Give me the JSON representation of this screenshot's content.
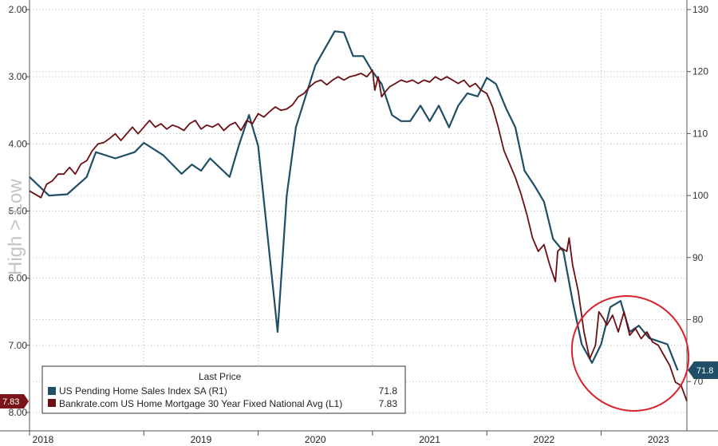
{
  "colors": {
    "pending": "#1f4e66",
    "mortgage": "#6b0f14",
    "highlight": "#d9222c",
    "grid": "#b8b8b8",
    "right_badge": "#1f4e66",
    "left_badge": "#7a141a"
  },
  "side_label": "High > Low",
  "legend": {
    "title": "Last Price",
    "items": [
      {
        "name": "US Pending Home Sales Index SA  (R1)",
        "value": "71.8",
        "color": "#1f4e66"
      },
      {
        "name": "Bankrate.com US Home Mortgage 30 Year Fixed National Avg  (L1)",
        "value": "7.83",
        "color": "#6b0f14"
      }
    ]
  },
  "chart_data": {
    "type": "line",
    "x_axis": {
      "range": [
        2018.0,
        2023.75
      ],
      "ticks": [
        {
          "value": 2018.0,
          "label": "2018"
        },
        {
          "value": 2019.0,
          "label": "2019"
        },
        {
          "value": 2020.0,
          "label": "2020"
        },
        {
          "value": 2021.0,
          "label": "2021"
        },
        {
          "value": 2022.0,
          "label": "2022"
        },
        {
          "value": 2023.0,
          "label": "2023"
        }
      ]
    },
    "y_left": {
      "range": [
        2.0,
        8.0
      ],
      "inverted": true,
      "ticks": [
        {
          "value": 2.0,
          "label": "2.00"
        },
        {
          "value": 3.0,
          "label": "3.00"
        },
        {
          "value": 4.0,
          "label": "4.00"
        },
        {
          "value": 5.0,
          "label": "5.00"
        },
        {
          "value": 6.0,
          "label": "6.00"
        },
        {
          "value": 7.0,
          "label": "7.00"
        },
        {
          "value": 8.0,
          "label": "8.00"
        }
      ],
      "last_value_label": "7.83"
    },
    "y_right": {
      "range": [
        65,
        130
      ],
      "ticks": [
        {
          "value": 130,
          "label": "130"
        },
        {
          "value": 120,
          "label": "120"
        },
        {
          "value": 110,
          "label": "110"
        },
        {
          "value": 100,
          "label": "100"
        },
        {
          "value": 90,
          "label": "90"
        },
        {
          "value": 80,
          "label": "80"
        },
        {
          "value": 70,
          "label": "70"
        }
      ],
      "last_value_label": "71.8"
    },
    "series": [
      {
        "name": "US Pending Home Sales Index SA  (R1)",
        "axis": "right",
        "points": [
          [
            2018.0,
            103.0
          ],
          [
            2018.17,
            100.0
          ],
          [
            2018.33,
            100.2
          ],
          [
            2018.5,
            103.0
          ],
          [
            2018.58,
            107.0
          ],
          [
            2018.75,
            106.0
          ],
          [
            2018.92,
            107.0
          ],
          [
            2019.0,
            108.5
          ],
          [
            2019.17,
            106.5
          ],
          [
            2019.33,
            103.5
          ],
          [
            2019.42,
            105.0
          ],
          [
            2019.5,
            104.0
          ],
          [
            2019.58,
            106.0
          ],
          [
            2019.75,
            103.0
          ],
          [
            2019.83,
            108.0
          ],
          [
            2019.92,
            113.0
          ],
          [
            2020.0,
            108.0
          ],
          [
            2020.17,
            78.0
          ],
          [
            2020.25,
            100.0
          ],
          [
            2020.33,
            111.0
          ],
          [
            2020.5,
            121.0
          ],
          [
            2020.67,
            126.5
          ],
          [
            2020.75,
            126.3
          ],
          [
            2020.83,
            122.5
          ],
          [
            2020.92,
            122.5
          ],
          [
            2021.0,
            120.0
          ],
          [
            2021.08,
            118.0
          ],
          [
            2021.17,
            113.0
          ],
          [
            2021.25,
            112.0
          ],
          [
            2021.33,
            112.0
          ],
          [
            2021.42,
            114.5
          ],
          [
            2021.5,
            112.0
          ],
          [
            2021.58,
            114.5
          ],
          [
            2021.67,
            111.0
          ],
          [
            2021.75,
            114.5
          ],
          [
            2021.83,
            116.5
          ],
          [
            2021.92,
            116.0
          ],
          [
            2022.0,
            119.0
          ],
          [
            2022.08,
            118.0
          ],
          [
            2022.17,
            114.0
          ],
          [
            2022.25,
            111.0
          ],
          [
            2022.33,
            104.0
          ],
          [
            2022.42,
            101.5
          ],
          [
            2022.5,
            99.0
          ],
          [
            2022.58,
            93.0
          ],
          [
            2022.67,
            91.0
          ],
          [
            2022.75,
            83.0
          ],
          [
            2022.83,
            76.0
          ],
          [
            2022.92,
            73.0
          ],
          [
            2023.0,
            76.0
          ],
          [
            2023.08,
            82.0
          ],
          [
            2023.17,
            83.0
          ],
          [
            2023.25,
            78.0
          ],
          [
            2023.33,
            79.0
          ],
          [
            2023.42,
            77.0
          ],
          [
            2023.5,
            76.5
          ],
          [
            2023.58,
            76.0
          ],
          [
            2023.67,
            71.8
          ]
        ]
      },
      {
        "name": "Bankrate.com US Home Mortgage 30 Year Fixed National Avg  (L1)",
        "axis": "left",
        "points": [
          [
            2018.0,
            4.7
          ],
          [
            2018.1,
            4.8
          ],
          [
            2018.15,
            4.6
          ],
          [
            2018.2,
            4.55
          ],
          [
            2018.25,
            4.45
          ],
          [
            2018.3,
            4.45
          ],
          [
            2018.35,
            4.35
          ],
          [
            2018.4,
            4.45
          ],
          [
            2018.45,
            4.3
          ],
          [
            2018.5,
            4.25
          ],
          [
            2018.55,
            4.1
          ],
          [
            2018.6,
            4.0
          ],
          [
            2018.65,
            3.98
          ],
          [
            2018.7,
            3.92
          ],
          [
            2018.75,
            3.85
          ],
          [
            2018.8,
            3.95
          ],
          [
            2018.85,
            3.85
          ],
          [
            2018.9,
            3.75
          ],
          [
            2018.95,
            3.85
          ],
          [
            2019.0,
            3.75
          ],
          [
            2019.05,
            3.65
          ],
          [
            2019.1,
            3.75
          ],
          [
            2019.15,
            3.7
          ],
          [
            2019.2,
            3.78
          ],
          [
            2019.25,
            3.72
          ],
          [
            2019.3,
            3.75
          ],
          [
            2019.35,
            3.8
          ],
          [
            2019.4,
            3.7
          ],
          [
            2019.45,
            3.65
          ],
          [
            2019.5,
            3.78
          ],
          [
            2019.55,
            3.72
          ],
          [
            2019.6,
            3.75
          ],
          [
            2019.65,
            3.7
          ],
          [
            2019.7,
            3.8
          ],
          [
            2019.75,
            3.72
          ],
          [
            2019.8,
            3.68
          ],
          [
            2019.85,
            3.8
          ],
          [
            2019.9,
            3.65
          ],
          [
            2019.95,
            3.7
          ],
          [
            2020.0,
            3.55
          ],
          [
            2020.05,
            3.6
          ],
          [
            2020.1,
            3.52
          ],
          [
            2020.15,
            3.45
          ],
          [
            2020.2,
            3.5
          ],
          [
            2020.25,
            3.48
          ],
          [
            2020.3,
            3.42
          ],
          [
            2020.35,
            3.3
          ],
          [
            2020.4,
            3.25
          ],
          [
            2020.45,
            3.15
          ],
          [
            2020.5,
            3.08
          ],
          [
            2020.55,
            3.05
          ],
          [
            2020.6,
            3.12
          ],
          [
            2020.65,
            3.05
          ],
          [
            2020.7,
            3.0
          ],
          [
            2020.75,
            3.05
          ],
          [
            2020.8,
            3.0
          ],
          [
            2020.85,
            2.98
          ],
          [
            2020.9,
            2.95
          ],
          [
            2020.95,
            3.0
          ],
          [
            2021.0,
            2.9
          ],
          [
            2021.02,
            3.2
          ],
          [
            2021.05,
            3.0
          ],
          [
            2021.08,
            3.3
          ],
          [
            2021.1,
            3.25
          ],
          [
            2021.15,
            3.15
          ],
          [
            2021.2,
            3.1
          ],
          [
            2021.25,
            3.05
          ],
          [
            2021.3,
            3.08
          ],
          [
            2021.35,
            3.05
          ],
          [
            2021.4,
            3.1
          ],
          [
            2021.45,
            3.05
          ],
          [
            2021.5,
            3.08
          ],
          [
            2021.55,
            3.0
          ],
          [
            2021.6,
            3.05
          ],
          [
            2021.65,
            3.0
          ],
          [
            2021.7,
            3.05
          ],
          [
            2021.75,
            3.1
          ],
          [
            2021.8,
            3.05
          ],
          [
            2021.85,
            3.15
          ],
          [
            2021.9,
            3.1
          ],
          [
            2021.95,
            3.2
          ],
          [
            2022.0,
            3.25
          ],
          [
            2022.05,
            3.45
          ],
          [
            2022.1,
            3.75
          ],
          [
            2022.15,
            4.1
          ],
          [
            2022.2,
            4.3
          ],
          [
            2022.25,
            4.5
          ],
          [
            2022.3,
            4.75
          ],
          [
            2022.35,
            5.05
          ],
          [
            2022.4,
            5.4
          ],
          [
            2022.45,
            5.6
          ],
          [
            2022.5,
            5.5
          ],
          [
            2022.55,
            5.8
          ],
          [
            2022.6,
            6.05
          ],
          [
            2022.62,
            5.6
          ],
          [
            2022.65,
            5.55
          ],
          [
            2022.7,
            5.6
          ],
          [
            2022.72,
            5.4
          ],
          [
            2022.75,
            5.8
          ],
          [
            2022.8,
            6.2
          ],
          [
            2022.85,
            6.8
          ],
          [
            2022.9,
            7.2
          ],
          [
            2022.95,
            7.0
          ],
          [
            2022.98,
            6.5
          ],
          [
            2023.02,
            6.6
          ],
          [
            2023.05,
            6.7
          ],
          [
            2023.1,
            6.55
          ],
          [
            2023.15,
            6.8
          ],
          [
            2023.2,
            6.5
          ],
          [
            2023.25,
            6.85
          ],
          [
            2023.3,
            6.75
          ],
          [
            2023.35,
            6.9
          ],
          [
            2023.4,
            6.8
          ],
          [
            2023.45,
            6.95
          ],
          [
            2023.5,
            7.0
          ],
          [
            2023.55,
            7.15
          ],
          [
            2023.6,
            7.3
          ],
          [
            2023.65,
            7.55
          ],
          [
            2023.7,
            7.6
          ],
          [
            2023.75,
            7.83
          ]
        ]
      }
    ]
  }
}
